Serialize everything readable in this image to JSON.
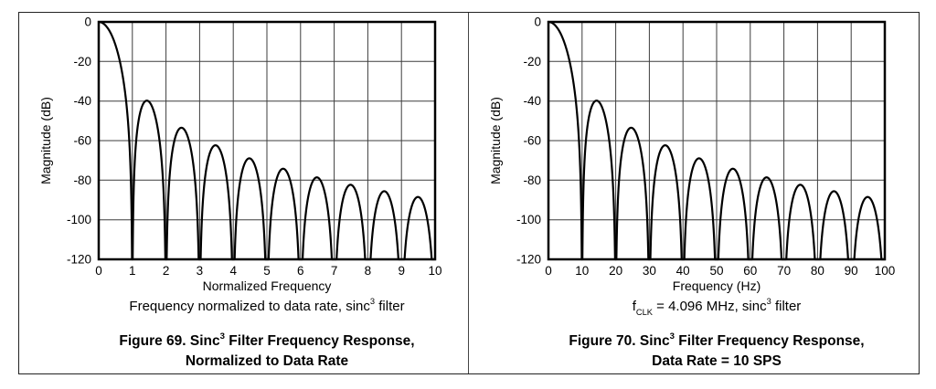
{
  "page": {
    "background": "#ffffff",
    "frame_border_color": "#222222",
    "divider_color": "#444444",
    "grid_color": "#3d3d3d",
    "axis_border_color": "#000000",
    "curve_color": "#000000"
  },
  "chart_data": [
    {
      "type": "line",
      "title": "Figure 69. Sinc3 Filter Frequency Response, Normalized to Data Rate",
      "xlabel": "Normalized Frequency",
      "ylabel": "Magnitude (dB)",
      "xlim": [
        0,
        10
      ],
      "ylim": [
        -120,
        0
      ],
      "xticks": [
        0,
        1,
        2,
        3,
        4,
        5,
        6,
        7,
        8,
        9,
        10
      ],
      "yticks": [
        0,
        -20,
        -40,
        -60,
        -80,
        -100,
        -120
      ],
      "grid": true,
      "legend_position": "none",
      "curve": {
        "function": "sinc3_magnitude_db",
        "formula_db": "60*log10(abs(sin(pi*x)/(pi*x)))",
        "null_spacing": 1,
        "clip_db": -120
      },
      "nulls_x": [
        1,
        2,
        3,
        4,
        5,
        6,
        7,
        8,
        9,
        10
      ],
      "sidelobe_peaks": [
        {
          "x": 1.43,
          "y": -39.8
        },
        {
          "x": 2.46,
          "y": -53.5
        },
        {
          "x": 3.47,
          "y": -62.4
        },
        {
          "x": 4.48,
          "y": -69.0
        },
        {
          "x": 5.48,
          "y": -74.2
        },
        {
          "x": 6.48,
          "y": -78.6
        },
        {
          "x": 7.49,
          "y": -82.3
        },
        {
          "x": 8.49,
          "y": -85.6
        },
        {
          "x": 9.49,
          "y": -88.5
        }
      ],
      "condition": {
        "pre": "Frequency normalized to data rate, sinc",
        "sup": "3",
        "post": " filter"
      },
      "figure_title": {
        "line1_pre": "Figure 69. Sinc",
        "line1_sup": "3",
        "line1_post": " Filter Frequency Response,",
        "line2": "Normalized to Data Rate"
      }
    },
    {
      "type": "line",
      "title": "Figure 70. Sinc3 Filter Frequency Response, Data Rate = 10 SPS",
      "xlabel": "Frequency (Hz)",
      "ylabel": "Magnitude (dB)",
      "xlim": [
        0,
        100
      ],
      "ylim": [
        -120,
        0
      ],
      "xticks": [
        0,
        10,
        20,
        30,
        40,
        50,
        60,
        70,
        80,
        90,
        100
      ],
      "yticks": [
        0,
        -20,
        -40,
        -60,
        -80,
        -100,
        -120
      ],
      "grid": true,
      "legend_position": "none",
      "curve": {
        "function": "sinc3_magnitude_db",
        "formula_db": "60*log10(abs(sin(pi*f/10)/(pi*f/10)))",
        "null_spacing": 10,
        "clip_db": -120
      },
      "nulls_x": [
        10,
        20,
        30,
        40,
        50,
        60,
        70,
        80,
        90,
        100
      ],
      "sidelobe_peaks": [
        {
          "x": 14.3,
          "y": -39.8
        },
        {
          "x": 24.6,
          "y": -53.5
        },
        {
          "x": 34.7,
          "y": -62.4
        },
        {
          "x": 44.8,
          "y": -69.0
        },
        {
          "x": 54.8,
          "y": -74.2
        },
        {
          "x": 64.8,
          "y": -78.6
        },
        {
          "x": 74.9,
          "y": -82.3
        },
        {
          "x": 84.9,
          "y": -85.6
        },
        {
          "x": 94.9,
          "y": -88.5
        }
      ],
      "condition": {
        "f": "f",
        "sub": "CLK",
        "mid": " = 4.096 MHz, sinc",
        "sup": "3",
        "post": " filter"
      },
      "figure_title": {
        "line1_pre": "Figure 70. Sinc",
        "line1_sup": "3",
        "line1_post": " Filter Frequency Response,",
        "line2": "Data Rate = 10 SPS"
      }
    }
  ]
}
